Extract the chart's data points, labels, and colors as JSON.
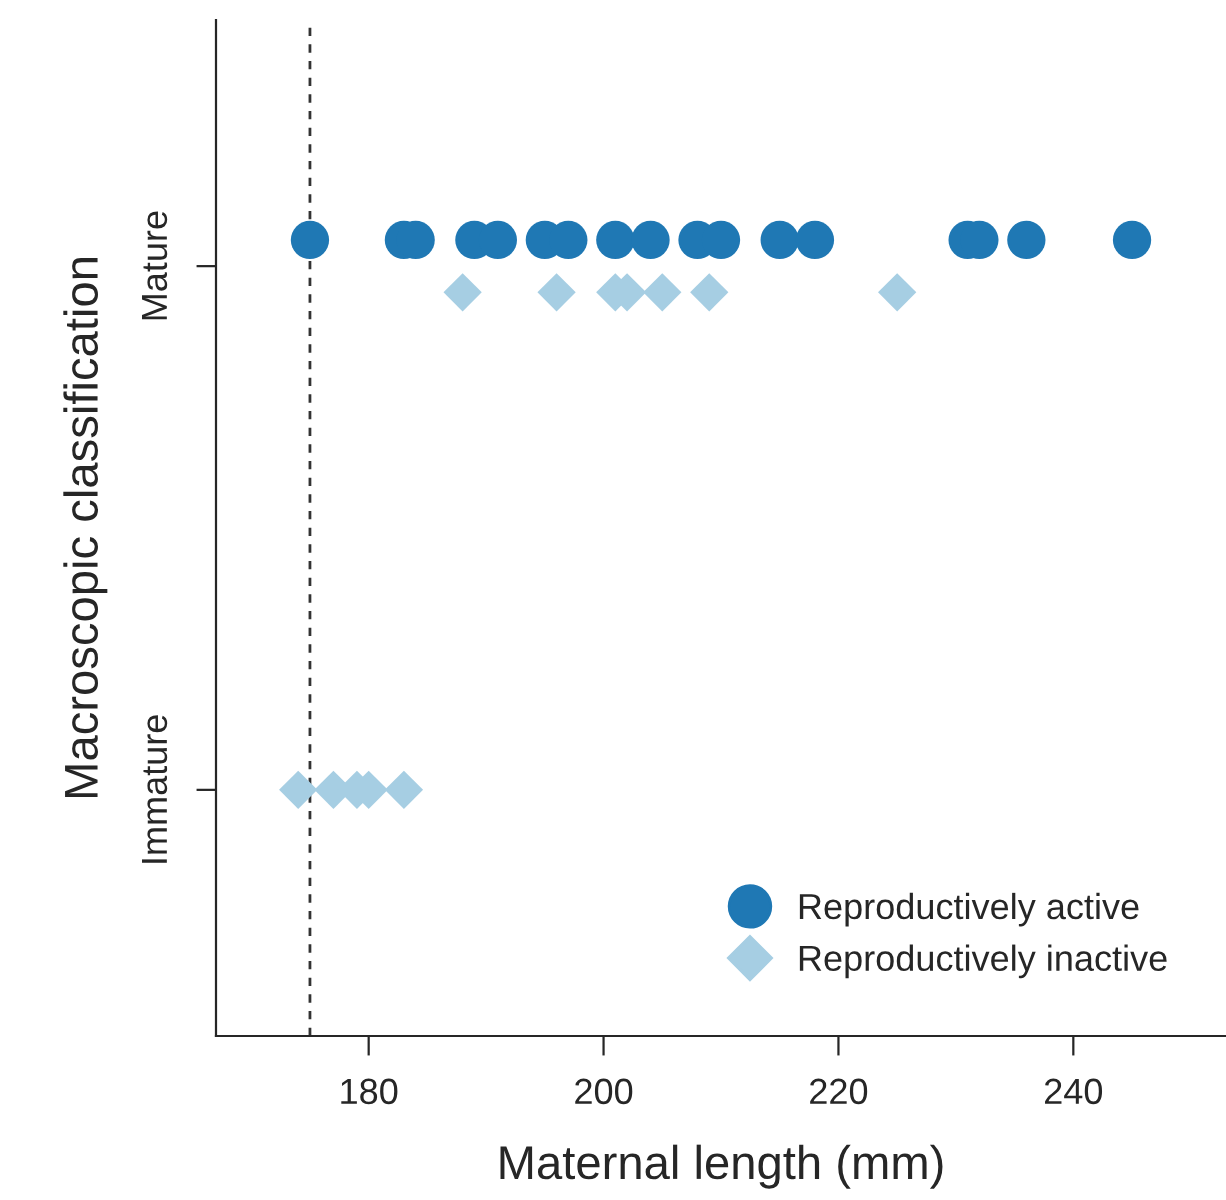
{
  "chart_data": {
    "type": "scatter",
    "orientation": "horizontal",
    "xlabel": "Maternal length (mm)",
    "ylabel": "Macroscopic classification",
    "categories": [
      "Mature",
      "Immature"
    ],
    "xlim": [
      167,
      253
    ],
    "xticks": [
      180,
      200,
      220,
      240
    ],
    "legend": "bottom right",
    "grid": false,
    "ref_lines": [
      {
        "axis": "x",
        "value": 175,
        "line_style": "dashed",
        "color": "#333333"
      }
    ],
    "series": [
      {
        "name": "Reproductively active",
        "color": "#1f78b4",
        "marker": "circle",
        "values": [
          175,
          null
        ]
      },
      {
        "color": "#1f78b4",
        "marker": "circle",
        "values": [
          183,
          null
        ]
      },
      {
        "color": "#1f78b4",
        "marker": "circle",
        "values": [
          184,
          null
        ]
      },
      {
        "color": "#1f78b4",
        "marker": "circle",
        "values": [
          189,
          null
        ]
      },
      {
        "color": "#1f78b4",
        "marker": "circle",
        "values": [
          191,
          null
        ]
      },
      {
        "color": "#1f78b4",
        "marker": "circle",
        "values": [
          195,
          null
        ]
      },
      {
        "color": "#1f78b4",
        "marker": "circle",
        "values": [
          197,
          null
        ]
      },
      {
        "color": "#1f78b4",
        "marker": "circle",
        "values": [
          201,
          null
        ]
      },
      {
        "color": "#1f78b4",
        "marker": "circle",
        "values": [
          204,
          null
        ]
      },
      {
        "color": "#1f78b4",
        "marker": "circle",
        "values": [
          208,
          null
        ]
      },
      {
        "color": "#1f78b4",
        "marker": "circle",
        "values": [
          210,
          null
        ]
      },
      {
        "color": "#1f78b4",
        "marker": "circle",
        "values": [
          215,
          null
        ]
      },
      {
        "color": "#1f78b4",
        "marker": "circle",
        "values": [
          218,
          null
        ]
      },
      {
        "color": "#1f78b4",
        "marker": "circle",
        "values": [
          231,
          null
        ]
      },
      {
        "color": "#1f78b4",
        "marker": "circle",
        "values": [
          232,
          null
        ]
      },
      {
        "color": "#1f78b4",
        "marker": "circle",
        "values": [
          236,
          null
        ]
      },
      {
        "color": "#1f78b4",
        "marker": "circle",
        "values": [
          245,
          null
        ]
      },
      {
        "name": "Reproductively inactive",
        "color": "#a6cee3",
        "marker": "diamond",
        "values": [
          188,
          174
        ]
      },
      {
        "color": "#a6cee3",
        "marker": "diamond",
        "values": [
          196,
          177
        ]
      },
      {
        "color": "#a6cee3",
        "marker": "diamond",
        "values": [
          201,
          179
        ]
      },
      {
        "color": "#a6cee3",
        "marker": "diamond",
        "values": [
          202,
          180
        ]
      },
      {
        "color": "#a6cee3",
        "marker": "diamond",
        "values": [
          205,
          183
        ]
      },
      {
        "color": "#a6cee3",
        "marker": "diamond",
        "values": [
          209,
          null
        ]
      },
      {
        "color": "#a6cee3",
        "marker": "diamond",
        "values": [
          225,
          null
        ]
      }
    ]
  }
}
